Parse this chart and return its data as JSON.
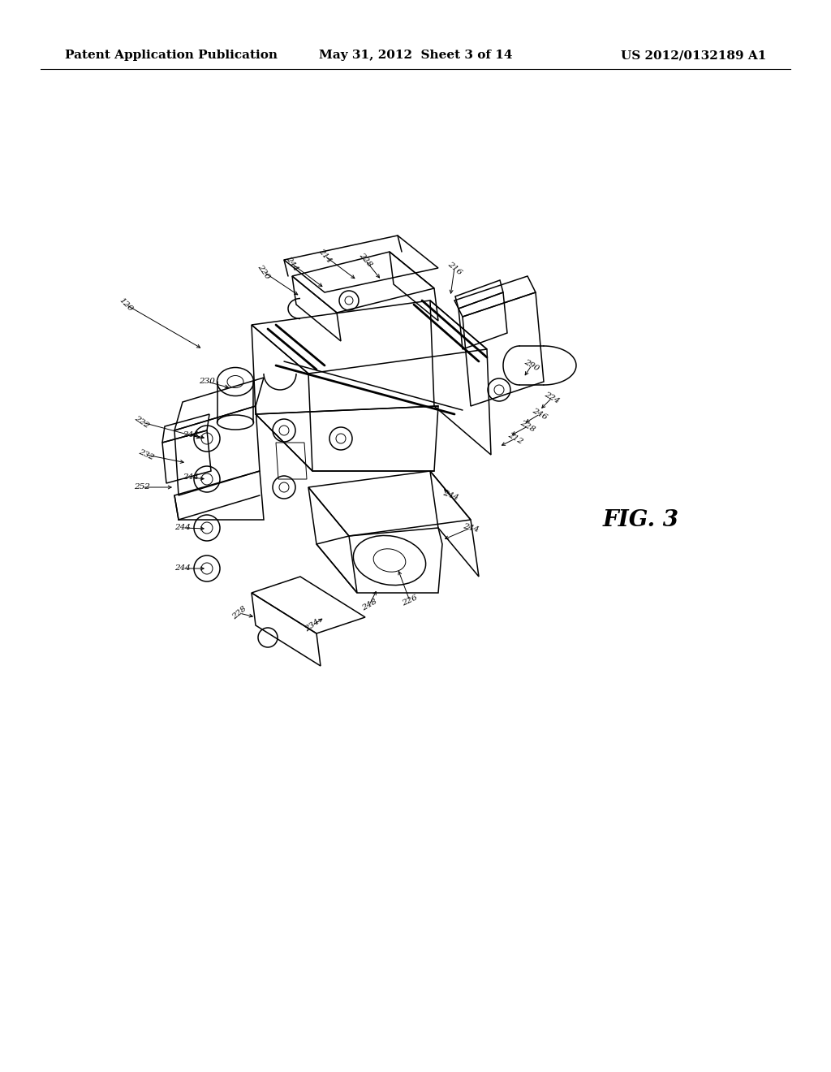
{
  "background_color": "#ffffff",
  "header_left": "Patent Application Publication",
  "header_center": "May 31, 2012  Sheet 3 of 14",
  "header_right": "US 2012/0132189 A1",
  "fig_label": "FIG. 3",
  "line_color": "#000000",
  "text_color": "#000000",
  "lw_main": 1.1,
  "lw_thick": 2.0,
  "lw_thin": 0.7,
  "ref_fontsize": 7.5,
  "fig_fontsize": 20
}
